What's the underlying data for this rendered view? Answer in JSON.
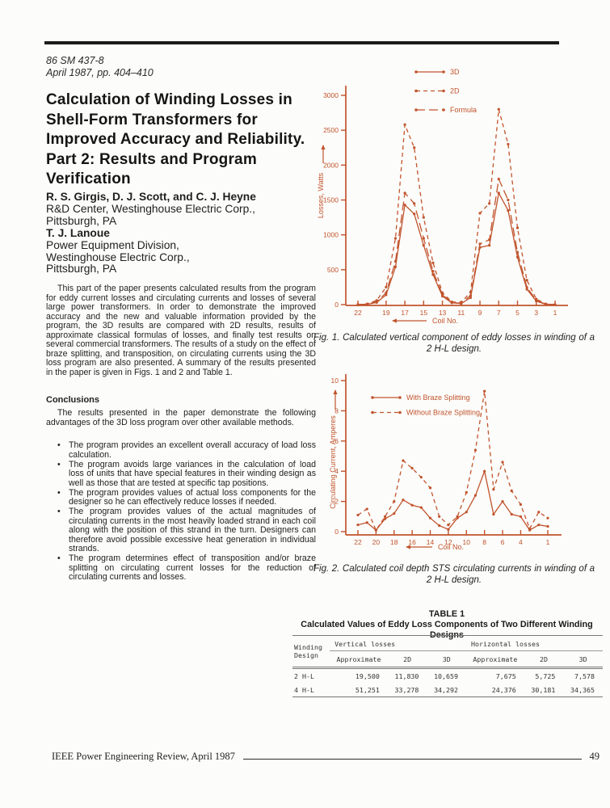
{
  "colors": {
    "accent": "#c1542d",
    "ink": "#1f1f1f"
  },
  "header": {
    "paper_id": "86 SM 437-8",
    "paper_date": "April 1987, pp. 404–410"
  },
  "title": "Calculation of Winding Losses in Shell-Form Transformers for Improved Accuracy and Reliability. Part 2: Results and Program Verification",
  "authors": {
    "group1": {
      "name": "R. S. Girgis, D. J. Scott, and C. J. Heyne",
      "line1": "R&D Center, Westinghouse Electric Corp.,",
      "line2": "Pittsburgh, PA"
    },
    "group2": {
      "name": "T. J. Lanoue",
      "line1": "Power Equipment Division,",
      "line2": "Westinghouse Electric Corp.,",
      "line3": "Pittsburgh, PA"
    }
  },
  "abstract": "This part of the paper presents calculated results from the program for eddy current losses and circulating currents and losses of several large power transformers. In order to demonstrate the improved accuracy and the new and valuable information provided by the program, the 3D results are compared with 2D results, results of approximate classical formulas of losses, and finally test results on several commercial transformers. The results of a study on the effect of braze splitting, and transposition, on circulating currents using the 3D loss program are also presented. A summary of the results presented in the paper is given in Figs. 1 and 2 and Table 1.",
  "conclusions": {
    "heading": "Conclusions",
    "intro": "The results presented in the paper demonstrate the following advantages of the 3D loss program over other available methods.",
    "bullets": [
      "The program provides an excellent overall accuracy of load loss calculation.",
      "The program avoids large variances in the calculation of load loss of units that have special features in their winding design as well as those that are tested at specific tap positions.",
      "The program provides values of actual loss components for the designer so he can effectively reduce losses if needed.",
      "The program provides values of the actual magnitudes of circulating currents in the most heavily loaded strand in each coil along with the position of this strand in the turn. Designers can therefore avoid possible excessive heat generation in individual strands.",
      "The program determines effect of transposition and/or braze splitting on circulating current losses for the reduction of circulating currents and losses."
    ]
  },
  "figures": {
    "fig1_caption": "Fig. 1. Calculated vertical component of eddy losses in winding of a 2 H-L design.",
    "fig2_caption": "Fig. 2. Calculated coil depth STS circulating currents in winding of a 2 H-L design."
  },
  "chart_data": [
    {
      "type": "line",
      "title": "",
      "xlabel": "Coil No.",
      "ylabel": "Losses, Watts",
      "x_axis_reversed": true,
      "xlim": [
        22,
        1
      ],
      "ylim": [
        0,
        3000
      ],
      "x_ticks": [
        22,
        19,
        17,
        15,
        13,
        11,
        9,
        7,
        5,
        3,
        1
      ],
      "y_ticks": [
        0,
        500,
        1000,
        1500,
        2000,
        2500,
        3000
      ],
      "grid": false,
      "legend_position": "top",
      "x": [
        22,
        21,
        20,
        19,
        18,
        17,
        16,
        15,
        14,
        13,
        12,
        11,
        10,
        9,
        8,
        7,
        6,
        5,
        4,
        3,
        2,
        1
      ],
      "series": [
        {
          "name": "3D",
          "style": "solid",
          "values": [
            0,
            5,
            30,
            140,
            540,
            1430,
            1300,
            850,
            430,
            120,
            25,
            15,
            100,
            820,
            850,
            1600,
            1350,
            680,
            220,
            50,
            5,
            0
          ]
        },
        {
          "name": "2D",
          "style": "dashed",
          "values": [
            0,
            10,
            60,
            250,
            950,
            2580,
            2250,
            1250,
            600,
            170,
            40,
            30,
            180,
            1310,
            1450,
            2800,
            2300,
            1100,
            350,
            80,
            10,
            0
          ]
        },
        {
          "name": "Formula",
          "style": "longdash",
          "values": [
            0,
            8,
            40,
            170,
            620,
            1600,
            1450,
            950,
            480,
            140,
            30,
            20,
            130,
            870,
            930,
            1800,
            1500,
            750,
            250,
            60,
            8,
            0
          ]
        }
      ]
    },
    {
      "type": "line",
      "title": "",
      "xlabel": "Coil No.",
      "ylabel": "Circulating Current, Amperes",
      "x_axis_reversed": true,
      "xlim": [
        22,
        1
      ],
      "ylim": [
        0,
        10
      ],
      "x_ticks": [
        22,
        20,
        18,
        16,
        14,
        12,
        10,
        8,
        6,
        4,
        1
      ],
      "y_ticks": [
        0,
        2,
        4,
        6,
        8,
        10
      ],
      "grid": false,
      "legend_position": "top-left",
      "x": [
        22,
        21,
        20,
        19,
        18,
        17,
        16,
        15,
        14,
        13,
        12,
        11,
        10,
        9,
        8,
        7,
        6,
        5,
        4,
        3,
        2,
        1
      ],
      "series": [
        {
          "name": "With Braze Splitting",
          "style": "solid",
          "values": [
            0.45,
            0.6,
            0.1,
            0.85,
            1.2,
            2.1,
            1.75,
            1.6,
            0.9,
            0.4,
            0.15,
            0.9,
            1.3,
            2.4,
            4.0,
            1.15,
            2.0,
            1.15,
            1.0,
            0.1,
            0.45,
            0.35
          ]
        },
        {
          "name": "Without Braze Splitting",
          "style": "dashed",
          "values": [
            1.1,
            1.5,
            0.1,
            1.0,
            2.0,
            4.7,
            4.2,
            3.6,
            2.9,
            1.0,
            0.45,
            1.0,
            2.6,
            5.4,
            9.3,
            2.8,
            4.6,
            2.7,
            1.8,
            0.2,
            1.3,
            0.9
          ]
        }
      ]
    }
  ],
  "table": {
    "title": "TABLE 1",
    "subtitle": "Calculated Values of Eddy Loss Components of Two Different Winding Designs",
    "group_headers": {
      "vertical": "Vertical losses",
      "horizontal": "Horizontal losses"
    },
    "row_header": "Winding Design",
    "row_header_line1": "Winding",
    "row_header_line2": "Design",
    "col_headers": {
      "approx": "Approximate",
      "d2": "2D",
      "d3": "3D"
    },
    "rows": [
      [
        "2 H-L",
        "19,500",
        "11,830",
        "10,659",
        "7,675",
        "5,725",
        "7,578"
      ],
      [
        "4 H-L",
        "51,251",
        "33,278",
        "34,292",
        "24,376",
        "30,181",
        "34,365"
      ]
    ]
  },
  "footer": {
    "journal": "IEEE Power Engineering Review, April 1987",
    "page_number": "49"
  }
}
